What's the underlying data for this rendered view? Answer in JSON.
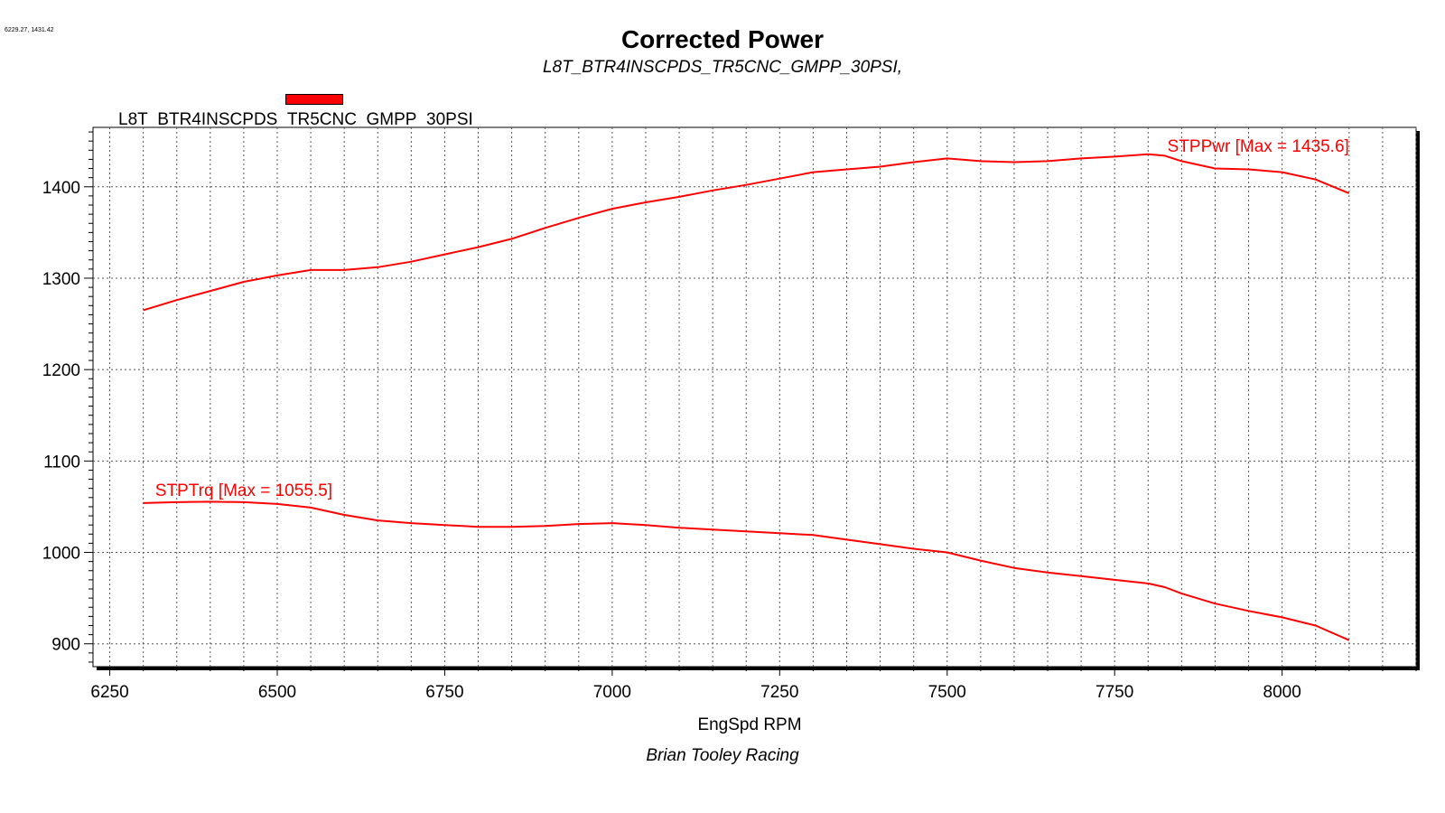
{
  "header": {
    "coord_readout": "6229.27, 1431.42",
    "title": "Corrected Power",
    "subtitle": "L8T_BTR4INSCPDS_TR5CNC_GMPP_30PSI,"
  },
  "footer": {
    "text": "Brian Tooley Racing"
  },
  "colors": {
    "series": "#ff0000",
    "grid": "#000000",
    "background": "#ffffff"
  },
  "chart_data": {
    "type": "line",
    "title": "Corrected Power",
    "subtitle": "L8T_BTR4INSCPDS_TR5CNC_GMPP_30PSI,",
    "xlabel": "EngSpd RPM",
    "ylabel": "",
    "xlim": [
      6225,
      8200
    ],
    "ylim": [
      875,
      1465
    ],
    "xticks": [
      6250,
      6500,
      6750,
      7000,
      7250,
      7500,
      7750,
      8000
    ],
    "yticks": [
      900,
      1000,
      1100,
      1200,
      1300,
      1400
    ],
    "grid": true,
    "legend": {
      "position": "top-left",
      "entries": [
        "L8T_BTR4INSCPDS_TR5CNC_GMPP_30PSI"
      ]
    },
    "series": [
      {
        "name": "STPPwr",
        "annotation": "STPPwr [Max = 1435.6]",
        "x": [
          6300,
          6350,
          6400,
          6450,
          6500,
          6550,
          6600,
          6650,
          6700,
          6750,
          6800,
          6850,
          6900,
          6950,
          7000,
          7050,
          7100,
          7150,
          7200,
          7250,
          7300,
          7350,
          7400,
          7450,
          7500,
          7550,
          7600,
          7650,
          7700,
          7750,
          7800,
          7825,
          7850,
          7900,
          7950,
          8000,
          8050,
          8100
        ],
        "y": [
          1265,
          1276,
          1286,
          1296,
          1303,
          1309,
          1309,
          1312,
          1318,
          1326,
          1334,
          1343,
          1355,
          1366,
          1376,
          1383,
          1389,
          1396,
          1402,
          1409,
          1416,
          1419,
          1422,
          1427,
          1431,
          1428,
          1427,
          1428,
          1431,
          1433,
          1435.6,
          1434,
          1428,
          1420,
          1419,
          1416,
          1408,
          1393
        ]
      },
      {
        "name": "STPTrq",
        "annotation": "STPTrq [Max = 1055.5]",
        "x": [
          6300,
          6350,
          6400,
          6450,
          6500,
          6550,
          6600,
          6650,
          6700,
          6750,
          6800,
          6850,
          6900,
          6950,
          7000,
          7050,
          7100,
          7150,
          7200,
          7250,
          7300,
          7350,
          7400,
          7450,
          7500,
          7550,
          7600,
          7650,
          7700,
          7750,
          7800,
          7825,
          7850,
          7900,
          7950,
          8000,
          8050,
          8100
        ],
        "y": [
          1054,
          1055,
          1055.5,
          1055,
          1053,
          1049,
          1041,
          1035,
          1032,
          1030,
          1028,
          1028,
          1029,
          1031,
          1032,
          1030,
          1027,
          1025,
          1023,
          1021,
          1019,
          1014,
          1009,
          1004,
          1000,
          991,
          983,
          978,
          974,
          970,
          966,
          962,
          955,
          944,
          936,
          929,
          920,
          904
        ]
      }
    ]
  }
}
